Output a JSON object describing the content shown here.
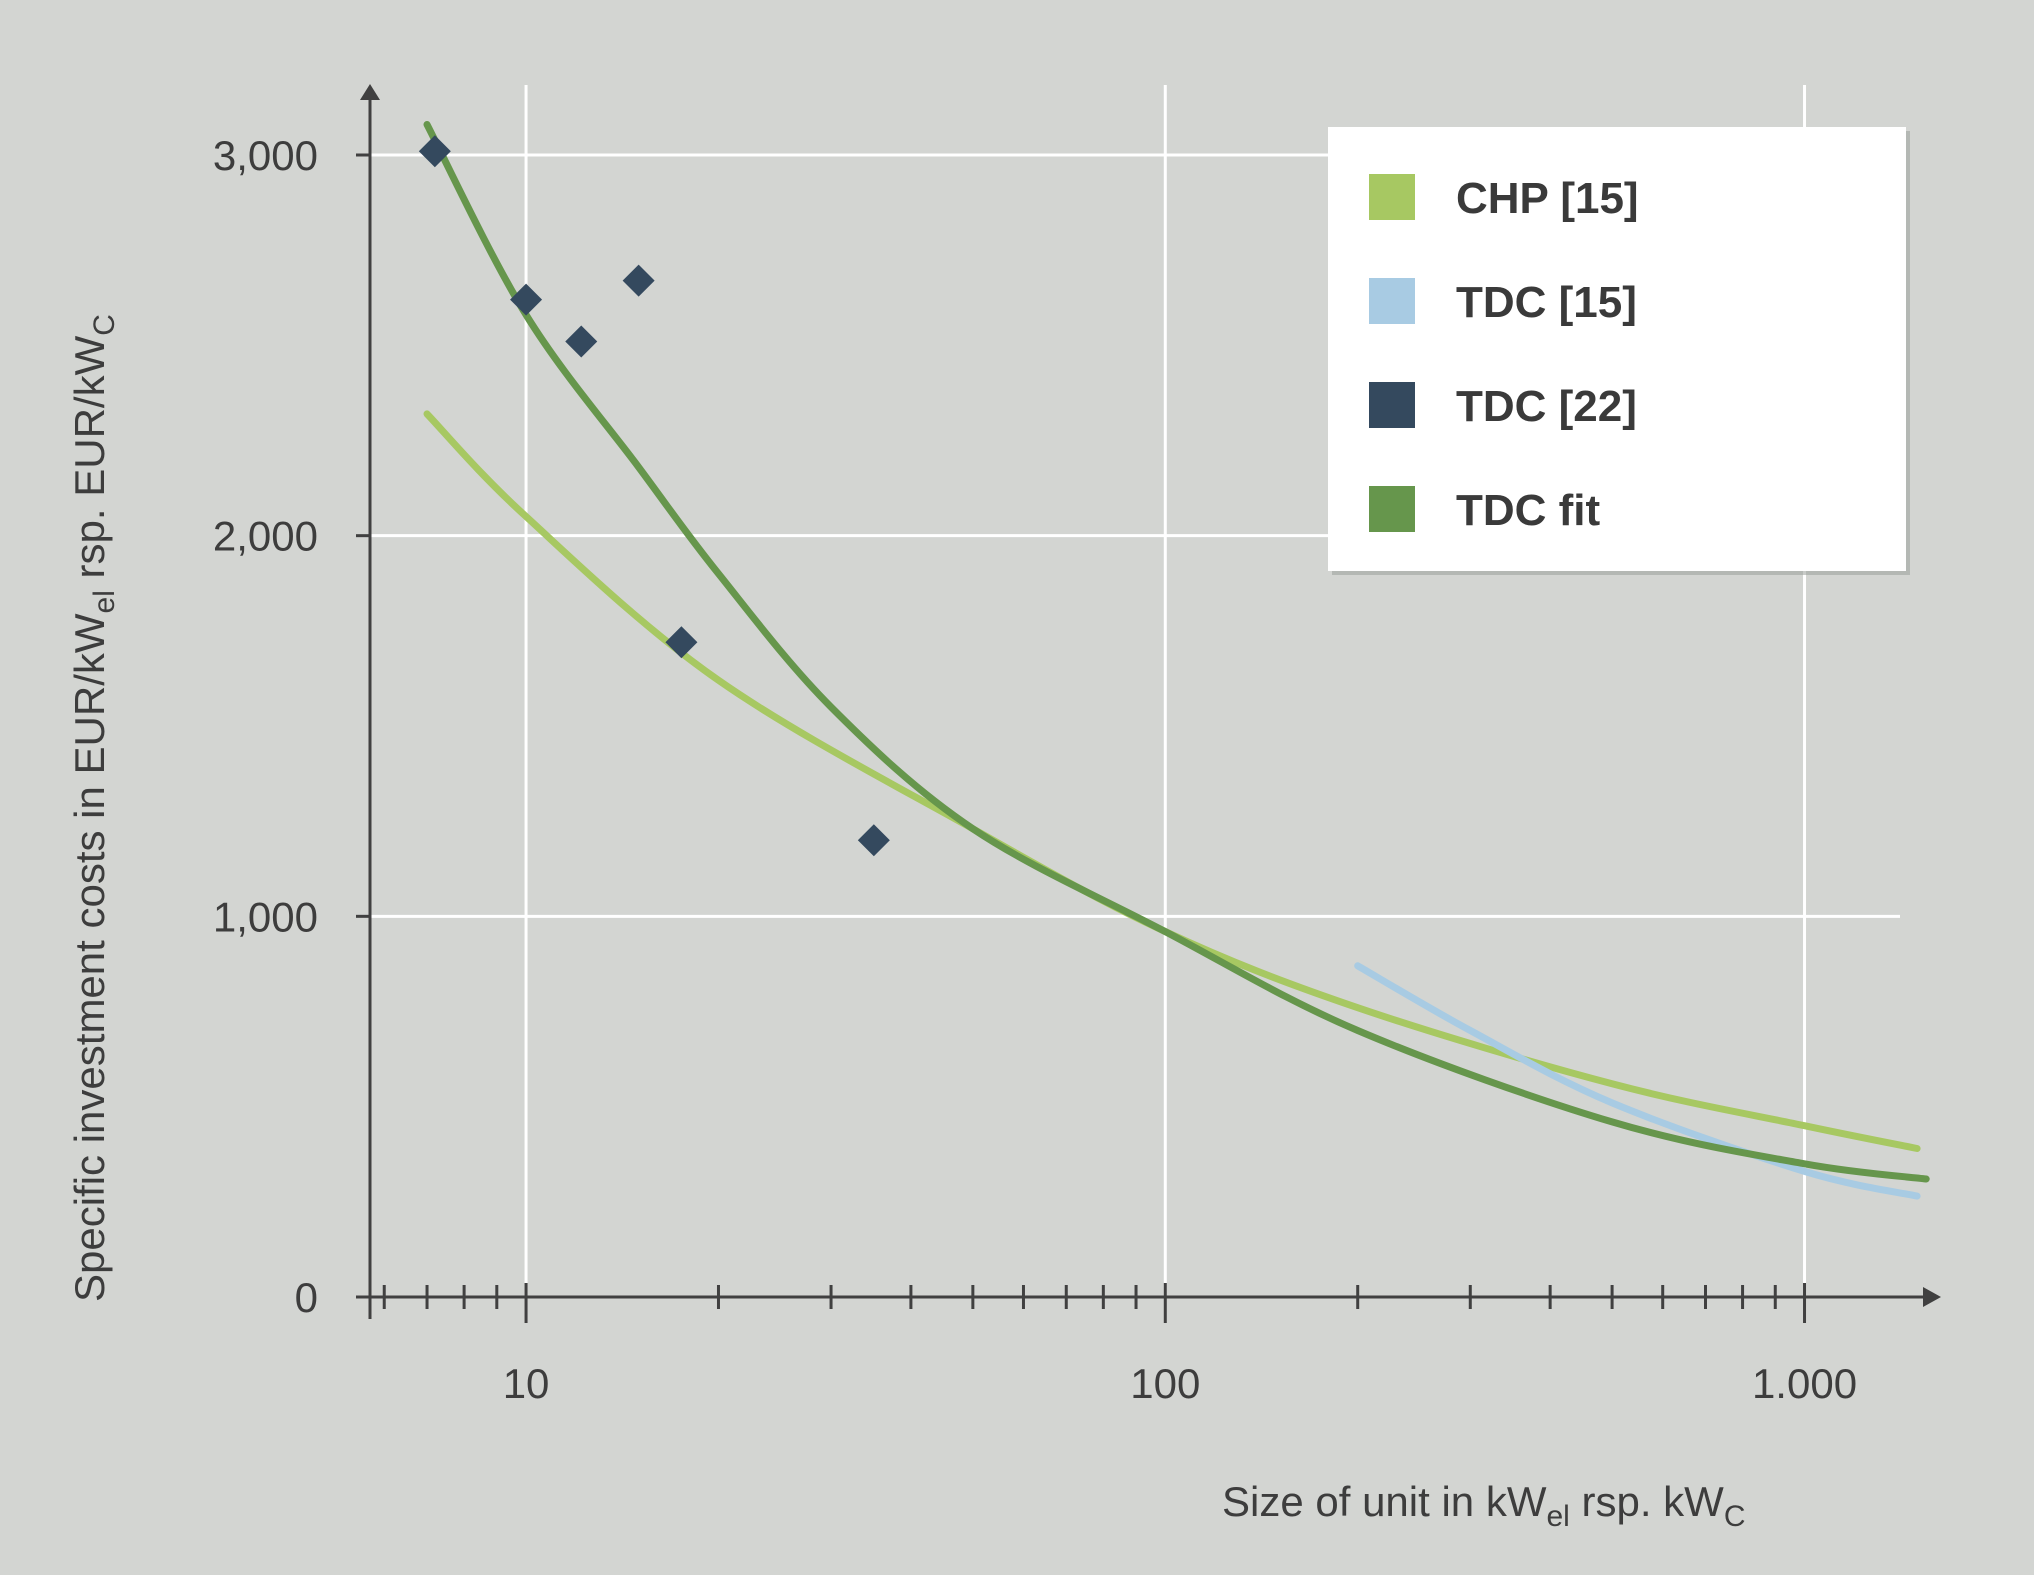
{
  "chart_data": {
    "type": "line+scatter",
    "x_scale": "log",
    "xlim": [
      5.7,
      1600
    ],
    "ylim": [
      0,
      3200
    ],
    "x_ticks": [
      {
        "value": 10,
        "label": "10"
      },
      {
        "value": 100,
        "label": "100"
      },
      {
        "value": 1000,
        "label": "1.000"
      }
    ],
    "y_ticks": [
      {
        "value": 0,
        "label": "0"
      },
      {
        "value": 1000,
        "label": "1,000"
      },
      {
        "value": 2000,
        "label": "2,000"
      },
      {
        "value": 3000,
        "label": "3,000"
      }
    ],
    "minor_x_ticks": [
      6,
      7,
      8,
      9,
      20,
      30,
      40,
      50,
      60,
      70,
      80,
      90,
      200,
      300,
      400,
      500,
      600,
      700,
      800,
      900
    ],
    "xlabel": {
      "main": "Size of unit in kW",
      "sub1": "el",
      "mid": " rsp. kW",
      "sub2": "C"
    },
    "ylabel": {
      "main": "Specific investment costs in EUR/kW",
      "sub1": "el",
      "mid": " rsp. EUR/kW",
      "sub2": "C"
    },
    "grid": true,
    "legend_position": "top-right",
    "series": [
      {
        "name": "CHP [15]",
        "kind": "line",
        "color": "#a7c862",
        "points": [
          [
            7,
            2320
          ],
          [
            10,
            2050
          ],
          [
            20,
            1620
          ],
          [
            50,
            1230
          ],
          [
            100,
            960
          ],
          [
            200,
            760
          ],
          [
            500,
            560
          ],
          [
            1000,
            450
          ],
          [
            1500,
            390
          ]
        ]
      },
      {
        "name": "TDC [15]",
        "kind": "line",
        "color": "#a8cbe3",
        "points": [
          [
            200,
            870
          ],
          [
            300,
            700
          ],
          [
            500,
            510
          ],
          [
            1000,
            330
          ],
          [
            1500,
            265
          ]
        ]
      },
      {
        "name": "TDC [22]",
        "kind": "scatter",
        "color": "#34495e",
        "points": [
          [
            7.2,
            3010
          ],
          [
            10,
            2620
          ],
          [
            12.2,
            2510
          ],
          [
            15,
            2670
          ],
          [
            17.5,
            1720
          ],
          [
            35,
            1200
          ]
        ]
      },
      {
        "name": "TDC fit",
        "kind": "line",
        "color": "#66964c",
        "points": [
          [
            7,
            3080
          ],
          [
            10,
            2580
          ],
          [
            15,
            2180
          ],
          [
            20,
            1900
          ],
          [
            30,
            1550
          ],
          [
            50,
            1230
          ],
          [
            100,
            960
          ],
          [
            200,
            700
          ],
          [
            500,
            460
          ],
          [
            1000,
            350
          ],
          [
            1550,
            310
          ]
        ]
      }
    ]
  }
}
